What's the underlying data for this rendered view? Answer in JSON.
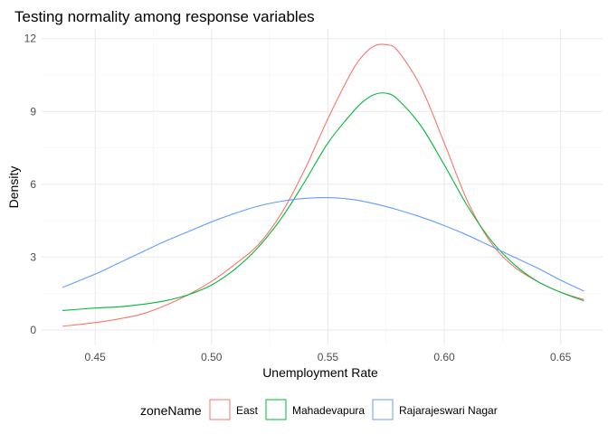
{
  "chart_data": {
    "type": "line",
    "title": "Testing normality among response variables",
    "xlabel": "Unemployment Rate",
    "ylabel": "Density",
    "xlim": [
      0.427,
      0.668
    ],
    "ylim": [
      -0.6,
      12.4
    ],
    "x_ticks": [
      0.45,
      0.5,
      0.55,
      0.6,
      0.65
    ],
    "x_tick_labels": [
      "0.45",
      "0.50",
      "0.55",
      "0.60",
      "0.65"
    ],
    "y_ticks": [
      0,
      3,
      6,
      9,
      12
    ],
    "y_tick_labels": [
      "0",
      "3",
      "6",
      "9",
      "12"
    ],
    "grid": true,
    "legend": {
      "title": "zoneName",
      "position": "bottom",
      "entries": [
        "East",
        "Mahadevapura",
        "Rajarajeswari Nagar"
      ]
    },
    "series": [
      {
        "name": "East",
        "color": "#F8766D",
        "x": [
          0.436,
          0.45,
          0.46,
          0.47,
          0.48,
          0.49,
          0.5,
          0.51,
          0.52,
          0.53,
          0.54,
          0.55,
          0.56,
          0.565,
          0.57,
          0.575,
          0.58,
          0.59,
          0.6,
          0.61,
          0.62,
          0.63,
          0.64,
          0.65,
          0.66
        ],
        "y": [
          0.15,
          0.3,
          0.45,
          0.65,
          1.0,
          1.45,
          2.0,
          2.7,
          3.5,
          4.8,
          6.6,
          8.7,
          10.6,
          11.3,
          11.7,
          11.75,
          11.5,
          10.0,
          7.7,
          5.3,
          3.6,
          2.6,
          2.0,
          1.55,
          1.25
        ]
      },
      {
        "name": "Mahadevapura",
        "color": "#00BA38",
        "x": [
          0.436,
          0.45,
          0.46,
          0.47,
          0.48,
          0.49,
          0.5,
          0.51,
          0.52,
          0.53,
          0.54,
          0.55,
          0.56,
          0.565,
          0.57,
          0.575,
          0.58,
          0.59,
          0.6,
          0.61,
          0.62,
          0.63,
          0.64,
          0.65,
          0.66
        ],
        "y": [
          0.8,
          0.9,
          0.95,
          1.05,
          1.2,
          1.45,
          1.85,
          2.5,
          3.4,
          4.6,
          6.1,
          7.7,
          8.9,
          9.4,
          9.7,
          9.75,
          9.5,
          8.4,
          6.8,
          5.1,
          3.7,
          2.7,
          2.0,
          1.55,
          1.2
        ]
      },
      {
        "name": "Rajarajeswari Nagar",
        "color": "#619CFF",
        "x": [
          0.436,
          0.45,
          0.46,
          0.47,
          0.48,
          0.49,
          0.5,
          0.51,
          0.52,
          0.53,
          0.54,
          0.55,
          0.56,
          0.57,
          0.58,
          0.59,
          0.6,
          0.61,
          0.62,
          0.63,
          0.64,
          0.65,
          0.66
        ],
        "y": [
          1.75,
          2.3,
          2.75,
          3.2,
          3.65,
          4.05,
          4.45,
          4.8,
          5.1,
          5.3,
          5.42,
          5.45,
          5.38,
          5.2,
          4.95,
          4.65,
          4.3,
          3.9,
          3.45,
          3.0,
          2.55,
          2.05,
          1.6
        ]
      }
    ]
  }
}
